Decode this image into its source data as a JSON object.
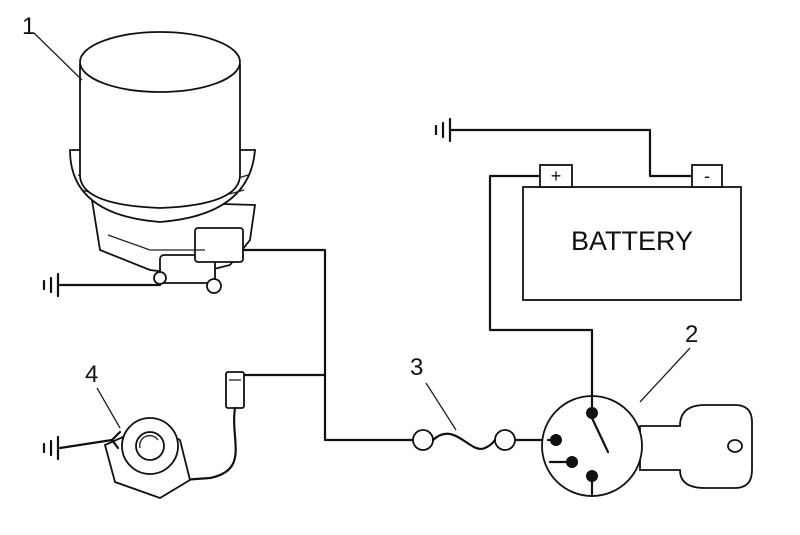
{
  "callouts": {
    "filter": "1",
    "ignition_switch": "2",
    "fuse": "3",
    "sensor": "4"
  },
  "battery": {
    "label": "BATTERY",
    "positive": "+",
    "negative": "-"
  }
}
